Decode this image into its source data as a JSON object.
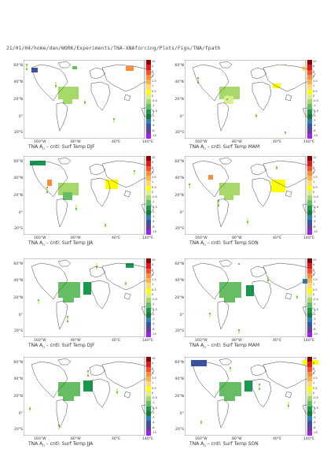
{
  "header": "21/01/04/home/dan/WORK/Experiments/TNA-XNAforcing/Plots/Figs/TNA/fpath",
  "lat_labels": [
    "60°N",
    "40°N",
    "20°N",
    "0°",
    "20°S"
  ],
  "lon_labels": [
    "160°W",
    "80°W",
    "40°E",
    "140°E"
  ],
  "colorbar_labels": [
    "10",
    "4",
    "3",
    "2",
    "1.5",
    "1",
    "0.5",
    "0",
    "-0.5",
    "-1",
    "-1.5",
    "-2",
    "-3",
    "-4",
    "-8",
    "-10"
  ],
  "colorbar_colors": [
    "#8b0000",
    "#e31a1c",
    "#fc4e2a",
    "#fd8d3c",
    "#feb24c",
    "#fed976",
    "#ffff00",
    "#d9ef8b",
    "#a6d96a",
    "#66bd63",
    "#1a9850",
    "#1b7837",
    "#2b83ba",
    "#3a53a4",
    "#6a3d9a",
    "#a020f0"
  ],
  "panels": [
    {
      "caption_prefix": "TNA A",
      "caption_sub": "n",
      "caption_rest": "– cntl: Surf Temp DJF"
    },
    {
      "caption_prefix": "TNA A",
      "caption_sub": "n",
      "caption_rest": "– cntl: Surf Temp MAM"
    },
    {
      "caption_prefix": "TNA A",
      "caption_sub": "n",
      "caption_rest": "– cntl: Surf Temp JJA"
    },
    {
      "caption_prefix": "TNA A",
      "caption_sub": "n",
      "caption_rest": "– cntl: Surf Temp SON"
    },
    {
      "caption_prefix": "TNA A",
      "caption_sub": "n",
      "caption_rest": "– cntl: Surf Temp DJF"
    },
    {
      "caption_prefix": "TNA A",
      "caption_sub": "n",
      "caption_rest": "– cntl: Surf Temp MAM"
    },
    {
      "caption_prefix": "TNA A",
      "caption_sub": "n",
      "caption_rest": "– cntl: Surf Temp JJA"
    },
    {
      "caption_prefix": "TNA A",
      "caption_sub": "n",
      "caption_rest": "– cntl: Surf Temp SON"
    }
  ]
}
